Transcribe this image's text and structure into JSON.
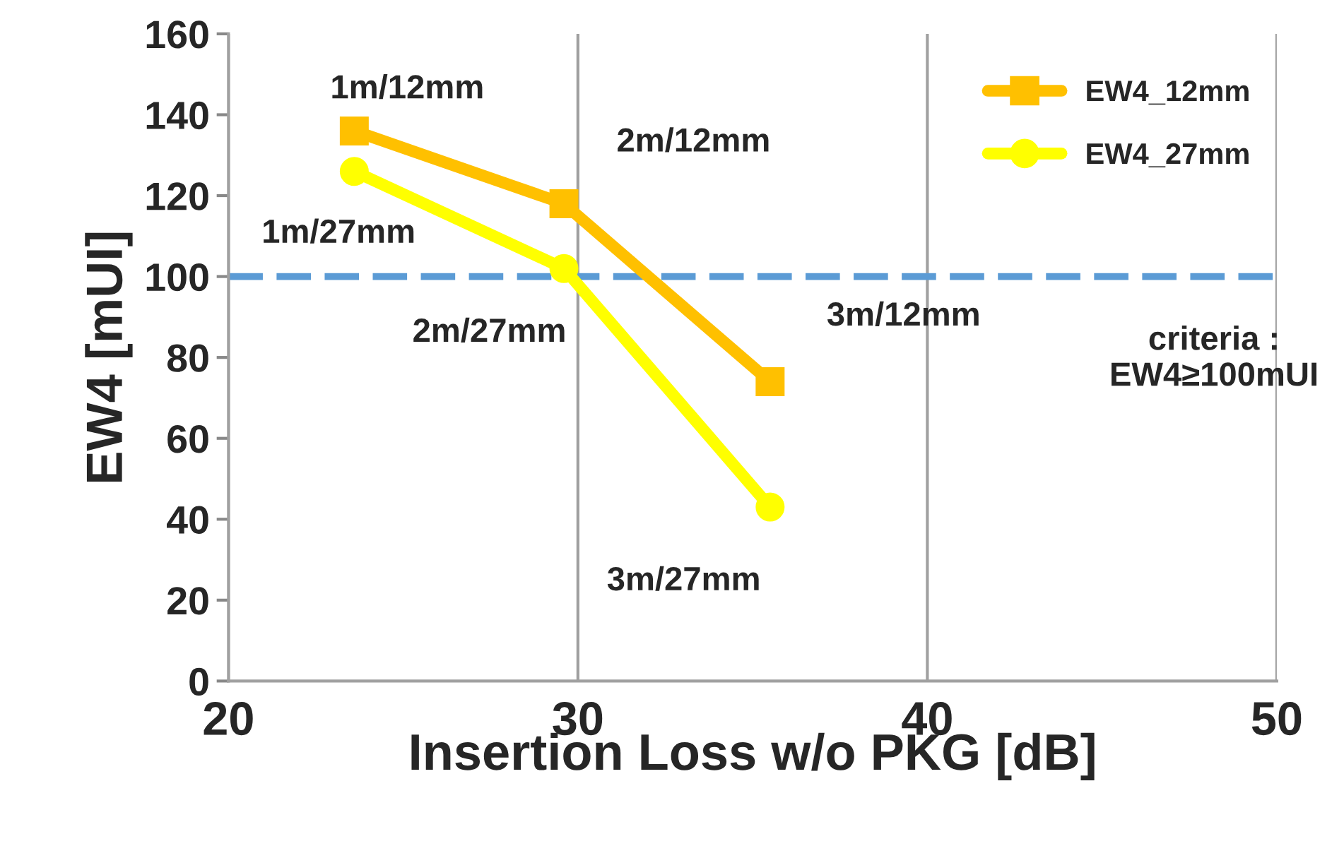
{
  "chart_data": {
    "type": "line",
    "xlabel": "Insertion Loss w/o PKG [dB]",
    "ylabel": "EW4 [mUI]",
    "xlim": [
      20,
      50
    ],
    "xticks": [
      20,
      30,
      40,
      50
    ],
    "ylim": [
      0,
      160
    ],
    "yticks": [
      0,
      20,
      40,
      60,
      80,
      100,
      120,
      140,
      160
    ],
    "grid": "x",
    "legend": "top right",
    "line_style": "solid",
    "series": [
      {
        "name": "EW4_12mm",
        "color": "#ffc000",
        "marker": "square",
        "x": [
          23.6,
          29.6,
          35.5
        ],
        "values": [
          136,
          118,
          74
        ]
      },
      {
        "name": "EW4_27mm",
        "color": "#ffff00",
        "marker": "circle",
        "x": [
          23.6,
          29.6,
          35.5
        ],
        "values": [
          126,
          102,
          43
        ]
      }
    ],
    "ref_lines": [
      {
        "axis": "y",
        "value": 100,
        "label": "criteria :\nEW4≥100mUI",
        "color": "#5b9bd5",
        "line_style": "dashed"
      }
    ],
    "annotations": [
      {
        "text": "1m/12mm",
        "x": 23.6,
        "y": 136
      },
      {
        "text": "2m/12mm",
        "x": 29.6,
        "y": 118
      },
      {
        "text": "3m/12mm",
        "x": 35.5,
        "y": 74
      },
      {
        "text": "1m/27mm",
        "x": 23.6,
        "y": 126
      },
      {
        "text": "2m/27mm",
        "x": 29.6,
        "y": 102
      },
      {
        "text": "3m/27mm",
        "x": 35.5,
        "y": 43
      }
    ]
  }
}
